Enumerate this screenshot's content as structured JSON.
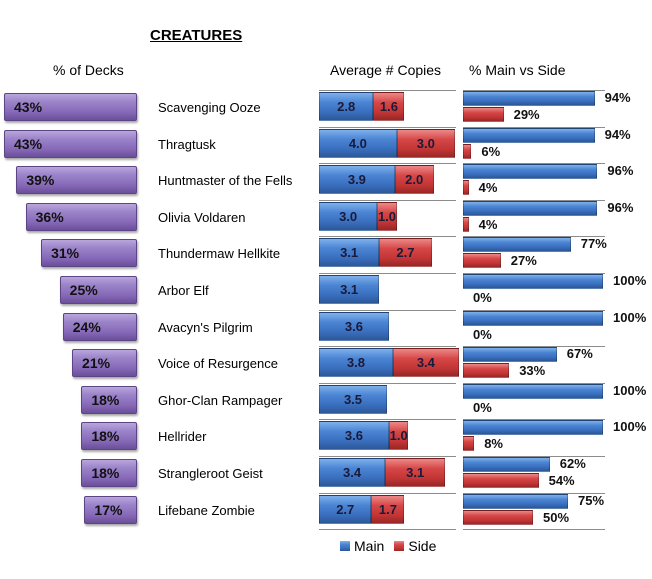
{
  "chart_data": {
    "type": "bar",
    "title": "CREATURES",
    "panels": {
      "decks": {
        "title": "% of Decks",
        "unit": "%",
        "max": 43
      },
      "copies": {
        "title": "Average # Copies",
        "max_total": 7.0
      },
      "main_vs_side": {
        "title": "% Main vs Side",
        "max": 100
      }
    },
    "legend": [
      {
        "name": "Main",
        "color": "#3a6fbf"
      },
      {
        "name": "Side",
        "color": "#c43636"
      }
    ],
    "legend_position": "bottom",
    "categories": [
      "Scavenging Ooze",
      "Thragtusk",
      "Huntmaster of the Fells",
      "Olivia Voldaren",
      "Thundermaw Hellkite",
      "Arbor Elf",
      "Avacyn's Pilgrim",
      "Voice of Resurgence",
      "Ghor-Clan Rampager",
      "Hellrider",
      "Strangleroot Geist",
      "Lifebane Zombie"
    ],
    "pct_decks": [
      43,
      43,
      39,
      36,
      31,
      25,
      24,
      21,
      18,
      18,
      18,
      17
    ],
    "avg_copies_main": [
      2.8,
      4.0,
      3.9,
      3.0,
      3.1,
      3.1,
      3.6,
      3.8,
      3.5,
      3.6,
      3.4,
      2.7
    ],
    "avg_copies_side": [
      1.6,
      3.0,
      2.0,
      1.0,
      2.7,
      null,
      null,
      3.4,
      null,
      1.0,
      3.1,
      1.7
    ],
    "pct_main": [
      94,
      94,
      96,
      96,
      77,
      100,
      100,
      67,
      100,
      100,
      62,
      75
    ],
    "pct_side": [
      29,
      6,
      4,
      4,
      27,
      0,
      0,
      33,
      0,
      8,
      54,
      50
    ]
  }
}
